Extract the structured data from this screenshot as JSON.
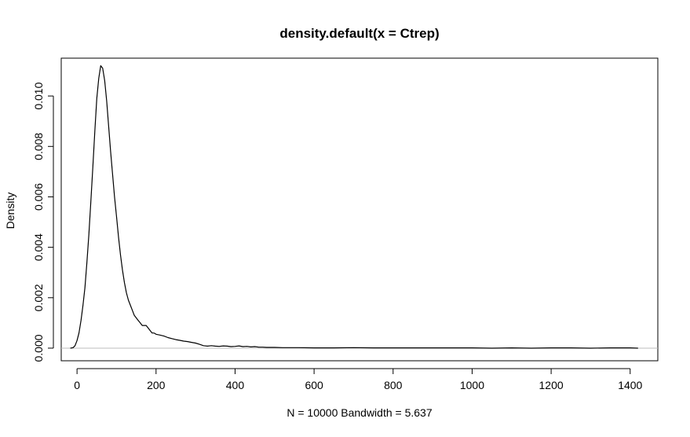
{
  "chart_data": {
    "type": "line",
    "title": "density.default(x = Ctrep)",
    "xlabel": "N = 10000   Bandwidth = 5.637",
    "ylabel": "Density",
    "xlim": [
      -40,
      1470
    ],
    "ylim": [
      -0.0005,
      0.0115
    ],
    "x_ticks": [
      0,
      200,
      400,
      600,
      800,
      1000,
      1200,
      1400
    ],
    "x_tick_labels": [
      "0",
      "200",
      "400",
      "600",
      "800",
      "1000",
      "1200",
      "1400"
    ],
    "y_ticks": [
      0.0,
      0.002,
      0.004,
      0.006,
      0.008,
      0.01
    ],
    "y_tick_labels": [
      "0.000",
      "0.002",
      "0.004",
      "0.006",
      "0.008",
      "0.010"
    ],
    "baseline": 0,
    "grid": false,
    "series": [
      {
        "x": [
          -17,
          -10,
          -5,
          0,
          5,
          10,
          15,
          20,
          25,
          30,
          35,
          40,
          45,
          50,
          55,
          60,
          65,
          70,
          75,
          80,
          85,
          90,
          95,
          100,
          105,
          110,
          115,
          120,
          125,
          130,
          135,
          140,
          145,
          150,
          155,
          160,
          165,
          170,
          175,
          180,
          185,
          190,
          195,
          200,
          210,
          220,
          230,
          240,
          250,
          260,
          270,
          280,
          290,
          300,
          310,
          320,
          330,
          340,
          350,
          360,
          370,
          380,
          390,
          400,
          410,
          420,
          430,
          440,
          450,
          460,
          470,
          480,
          500,
          520,
          540,
          560,
          600,
          650,
          700,
          750,
          800,
          850,
          900,
          950,
          1000,
          1050,
          1100,
          1150,
          1200,
          1250,
          1300,
          1350,
          1400,
          1420
        ],
        "y": [
          0.0,
          2e-05,
          0.0001,
          0.0003,
          0.0006,
          0.0011,
          0.0017,
          0.0024,
          0.0034,
          0.0045,
          0.0058,
          0.0072,
          0.0086,
          0.0099,
          0.0107,
          0.0112,
          0.0111,
          0.0106,
          0.0098,
          0.0088,
          0.0078,
          0.0069,
          0.006,
          0.0052,
          0.0044,
          0.0037,
          0.0031,
          0.0026,
          0.0022,
          0.0019,
          0.0017,
          0.0015,
          0.0013,
          0.0012,
          0.0011,
          0.001,
          0.0009,
          0.0009,
          0.0009,
          0.0008,
          0.0007,
          0.0006,
          0.0006,
          0.00055,
          0.00052,
          0.00048,
          0.00042,
          0.00038,
          0.00034,
          0.00031,
          0.00028,
          0.00026,
          0.00023,
          0.0002,
          0.00015,
          0.0001,
          8e-05,
          0.0001,
          8e-05,
          7e-05,
          9e-05,
          8e-05,
          6e-05,
          7e-05,
          9e-05,
          6e-05,
          7e-05,
          5e-05,
          6e-05,
          4e-05,
          4e-05,
          3e-05,
          3e-05,
          2e-05,
          2e-05,
          2e-05,
          1e-05,
          1e-05,
          2e-05,
          1e-05,
          1e-05,
          1e-05,
          1e-05,
          1e-05,
          1e-05,
          0.0,
          1e-05,
          0.0,
          1e-05,
          1e-05,
          0.0,
          1e-05,
          1e-05,
          0.0
        ]
      }
    ]
  }
}
